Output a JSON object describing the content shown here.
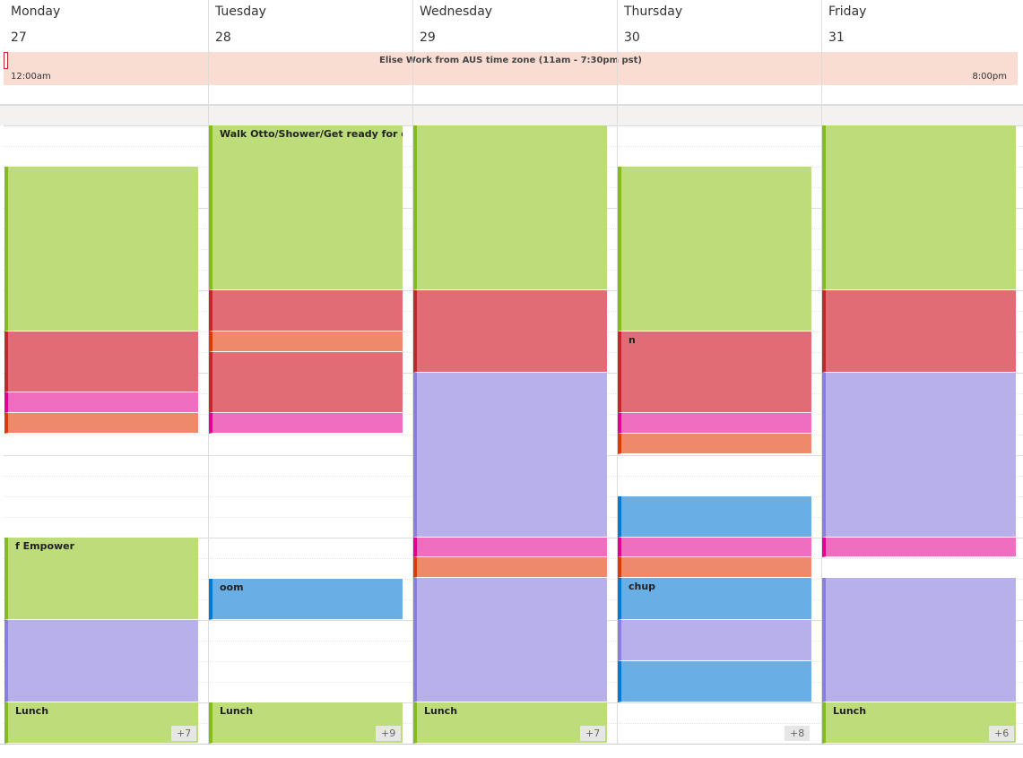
{
  "days": [
    {
      "name": "Monday",
      "date": "27",
      "more": "+7",
      "events": [
        {
          "color": "#bddc7a"
        },
        {
          "color": "#e06c75"
        },
        {
          "color": "#f06ec0"
        },
        {
          "color": "#ee8a6a"
        },
        {
          "color": "#bddc7a",
          "title": "f Empower"
        },
        {
          "color": "#b8b0ea"
        },
        {
          "color": "#bddc7a",
          "title": "Lunch"
        }
      ]
    },
    {
      "name": "Tuesday",
      "date": "28",
      "more": "+9",
      "events": [
        {
          "color": "#bddc7a",
          "title": "Walk Otto/Shower/Get ready for day"
        },
        {
          "color": "#e06c75"
        },
        {
          "color": "#ee8a6a"
        },
        {
          "color": "#e06c75"
        },
        {
          "color": "#f06ec0"
        },
        {
          "color": "#6aaee6",
          "title": "oom"
        },
        {
          "color": "#bddc7a",
          "title": "Lunch"
        }
      ]
    },
    {
      "name": "Wednesday",
      "date": "29",
      "more": "+7",
      "events": [
        {
          "color": "#bddc7a"
        },
        {
          "color": "#e06c75"
        },
        {
          "color": "#b8b0ea"
        },
        {
          "color": "#f06ec0"
        },
        {
          "color": "#ee8a6a"
        },
        {
          "color": "#b8b0ea"
        },
        {
          "color": "#bddc7a",
          "title": "Lunch"
        }
      ]
    },
    {
      "name": "Thursday",
      "date": "30",
      "more": "+8",
      "events": [
        {
          "color": "#bddc7a"
        },
        {
          "color": "#e06c75",
          "title": "n"
        },
        {
          "color": "#f06ec0"
        },
        {
          "color": "#ee8a6a"
        },
        {
          "color": "#6aaee6"
        },
        {
          "color": "#f06ec0"
        },
        {
          "color": "#ee8a6a"
        },
        {
          "color": "#6aaee6",
          "title": "chup"
        },
        {
          "color": "#b8b0ea"
        },
        {
          "color": "#6aaee6"
        }
      ]
    },
    {
      "name": "Friday",
      "date": "31",
      "more": "+6",
      "events": [
        {
          "color": "#bddc7a"
        },
        {
          "color": "#e06c75"
        },
        {
          "color": "#b8b0ea"
        },
        {
          "color": "#f06ec0"
        },
        {
          "color": "#b8b0ea"
        },
        {
          "color": "#bddc7a",
          "title": "Lunch"
        }
      ]
    }
  ],
  "all_day": {
    "title": "Elise Work from AUS time zone (11am - 7:30pm pst)",
    "start": "12:00am",
    "end": "8:00pm"
  }
}
